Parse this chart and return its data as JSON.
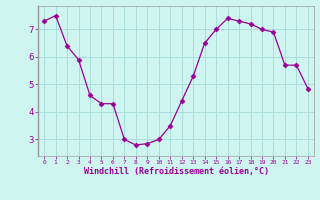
{
  "x": [
    0,
    1,
    2,
    3,
    4,
    5,
    6,
    7,
    8,
    9,
    10,
    11,
    12,
    13,
    14,
    15,
    16,
    17,
    18,
    19,
    20,
    21,
    22,
    23
  ],
  "y": [
    7.3,
    7.5,
    6.4,
    5.9,
    4.6,
    4.3,
    4.3,
    3.0,
    2.8,
    2.85,
    3.0,
    3.5,
    4.4,
    5.3,
    6.5,
    7.0,
    7.4,
    7.3,
    7.2,
    7.0,
    6.9,
    5.7,
    5.7,
    4.85
  ],
  "line_color": "#990099",
  "marker": "D",
  "marker_size": 2.5,
  "background_color": "#cef5f0",
  "grid_color": "#aadddd",
  "xlabel": "Windchill (Refroidissement éolien,°C)",
  "ylabel_ticks": [
    3,
    4,
    5,
    6,
    7
  ],
  "xlim": [
    -0.5,
    23.5
  ],
  "ylim": [
    2.4,
    7.85
  ],
  "xticks": [
    0,
    1,
    2,
    3,
    4,
    5,
    6,
    7,
    8,
    9,
    10,
    11,
    12,
    13,
    14,
    15,
    16,
    17,
    18,
    19,
    20,
    21,
    22,
    23
  ],
  "label_color": "#990099",
  "tick_color": "#990099",
  "spine_color": "#aaaaaa"
}
